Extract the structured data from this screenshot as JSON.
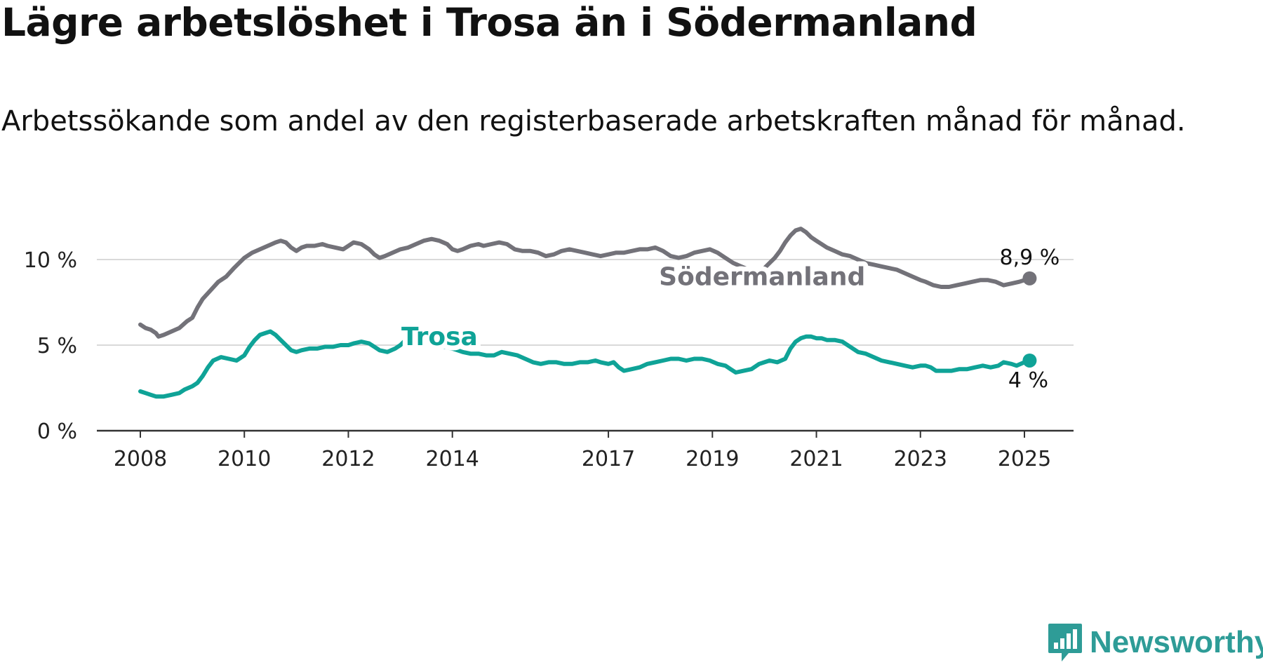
{
  "title": "Lägre arbetslöshet i Trosa än i Södermanland",
  "subtitle": "Arbetssökande som andel av den registerbaserade arbetskraften månad för månad.",
  "brand": "Newsworthy",
  "colors": {
    "sodermanland": "#737279",
    "trosa": "#0fa397",
    "grid": "#d9d9d9",
    "axis": "#333333",
    "brand": "#2e9c97"
  },
  "chart_data": {
    "type": "line",
    "xlim": [
      2007.58,
      2026.0
    ],
    "ylim": [
      0,
      12
    ],
    "y_ticks": [
      {
        "value": 0,
        "label": "0 %"
      },
      {
        "value": 5,
        "label": "5 %"
      },
      {
        "value": 10,
        "label": "10 %"
      }
    ],
    "x_ticks": [
      {
        "value": 2008,
        "label": "2008"
      },
      {
        "value": 2010,
        "label": "2010"
      },
      {
        "value": 2012,
        "label": "2012"
      },
      {
        "value": 2014,
        "label": "2014"
      },
      {
        "value": 2017,
        "label": "2017"
      },
      {
        "value": 2019,
        "label": "2019"
      },
      {
        "value": 2021,
        "label": "2021"
      },
      {
        "value": 2023,
        "label": "2023"
      },
      {
        "value": 2025,
        "label": "2025"
      }
    ],
    "grid": true,
    "series": [
      {
        "name": "Södermanland",
        "color": "#737279",
        "end_label": "8,9 %",
        "label_anchor": [
          2018.0,
          9.0
        ],
        "points": [
          [
            2008.0,
            6.2
          ],
          [
            2008.1,
            6.0
          ],
          [
            2008.2,
            5.9
          ],
          [
            2008.3,
            5.7
          ],
          [
            2008.35,
            5.5
          ],
          [
            2008.45,
            5.6
          ],
          [
            2008.6,
            5.8
          ],
          [
            2008.75,
            6.0
          ],
          [
            2008.9,
            6.4
          ],
          [
            2009.0,
            6.6
          ],
          [
            2009.1,
            7.2
          ],
          [
            2009.2,
            7.7
          ],
          [
            2009.35,
            8.2
          ],
          [
            2009.5,
            8.7
          ],
          [
            2009.65,
            9.0
          ],
          [
            2009.8,
            9.5
          ],
          [
            2009.9,
            9.8
          ],
          [
            2010.0,
            10.1
          ],
          [
            2010.15,
            10.4
          ],
          [
            2010.3,
            10.6
          ],
          [
            2010.45,
            10.8
          ],
          [
            2010.6,
            11.0
          ],
          [
            2010.7,
            11.1
          ],
          [
            2010.8,
            11.0
          ],
          [
            2010.9,
            10.7
          ],
          [
            2011.0,
            10.5
          ],
          [
            2011.1,
            10.7
          ],
          [
            2011.2,
            10.8
          ],
          [
            2011.35,
            10.8
          ],
          [
            2011.5,
            10.9
          ],
          [
            2011.6,
            10.8
          ],
          [
            2011.75,
            10.7
          ],
          [
            2011.9,
            10.6
          ],
          [
            2012.0,
            10.8
          ],
          [
            2012.1,
            11.0
          ],
          [
            2012.25,
            10.9
          ],
          [
            2012.4,
            10.6
          ],
          [
            2012.5,
            10.3
          ],
          [
            2012.6,
            10.1
          ],
          [
            2012.7,
            10.2
          ],
          [
            2012.85,
            10.4
          ],
          [
            2013.0,
            10.6
          ],
          [
            2013.15,
            10.7
          ],
          [
            2013.3,
            10.9
          ],
          [
            2013.45,
            11.1
          ],
          [
            2013.6,
            11.2
          ],
          [
            2013.75,
            11.1
          ],
          [
            2013.9,
            10.9
          ],
          [
            2014.0,
            10.6
          ],
          [
            2014.1,
            10.5
          ],
          [
            2014.2,
            10.6
          ],
          [
            2014.35,
            10.8
          ],
          [
            2014.5,
            10.9
          ],
          [
            2014.6,
            10.8
          ],
          [
            2014.75,
            10.9
          ],
          [
            2014.9,
            11.0
          ],
          [
            2015.05,
            10.9
          ],
          [
            2015.2,
            10.6
          ],
          [
            2015.35,
            10.5
          ],
          [
            2015.5,
            10.5
          ],
          [
            2015.65,
            10.4
          ],
          [
            2015.8,
            10.2
          ],
          [
            2015.95,
            10.3
          ],
          [
            2016.1,
            10.5
          ],
          [
            2016.25,
            10.6
          ],
          [
            2016.4,
            10.5
          ],
          [
            2016.55,
            10.4
          ],
          [
            2016.7,
            10.3
          ],
          [
            2016.85,
            10.2
          ],
          [
            2017.0,
            10.3
          ],
          [
            2017.15,
            10.4
          ],
          [
            2017.3,
            10.4
          ],
          [
            2017.45,
            10.5
          ],
          [
            2017.6,
            10.6
          ],
          [
            2017.75,
            10.6
          ],
          [
            2017.9,
            10.7
          ],
          [
            2018.05,
            10.5
          ],
          [
            2018.2,
            10.2
          ],
          [
            2018.35,
            10.1
          ],
          [
            2018.5,
            10.2
          ],
          [
            2018.65,
            10.4
          ],
          [
            2018.8,
            10.5
          ],
          [
            2018.95,
            10.6
          ],
          [
            2019.1,
            10.4
          ],
          [
            2019.25,
            10.1
          ],
          [
            2019.4,
            9.8
          ],
          [
            2019.55,
            9.6
          ],
          [
            2019.7,
            9.4
          ],
          [
            2019.85,
            9.3
          ],
          [
            2020.0,
            9.5
          ],
          [
            2020.1,
            9.8
          ],
          [
            2020.2,
            10.1
          ],
          [
            2020.3,
            10.5
          ],
          [
            2020.4,
            11.0
          ],
          [
            2020.5,
            11.4
          ],
          [
            2020.6,
            11.7
          ],
          [
            2020.7,
            11.8
          ],
          [
            2020.8,
            11.6
          ],
          [
            2020.9,
            11.3
          ],
          [
            2021.0,
            11.1
          ],
          [
            2021.1,
            10.9
          ],
          [
            2021.2,
            10.7
          ],
          [
            2021.35,
            10.5
          ],
          [
            2021.5,
            10.3
          ],
          [
            2021.65,
            10.2
          ],
          [
            2021.8,
            10.0
          ],
          [
            2021.95,
            9.8
          ],
          [
            2022.1,
            9.7
          ],
          [
            2022.25,
            9.6
          ],
          [
            2022.4,
            9.5
          ],
          [
            2022.55,
            9.4
          ],
          [
            2022.7,
            9.2
          ],
          [
            2022.85,
            9.0
          ],
          [
            2023.0,
            8.8
          ],
          [
            2023.1,
            8.7
          ],
          [
            2023.25,
            8.5
          ],
          [
            2023.4,
            8.4
          ],
          [
            2023.55,
            8.4
          ],
          [
            2023.7,
            8.5
          ],
          [
            2023.85,
            8.6
          ],
          [
            2024.0,
            8.7
          ],
          [
            2024.15,
            8.8
          ],
          [
            2024.3,
            8.8
          ],
          [
            2024.45,
            8.7
          ],
          [
            2024.6,
            8.5
          ],
          [
            2024.75,
            8.6
          ],
          [
            2024.9,
            8.7
          ],
          [
            2025.0,
            8.8
          ],
          [
            2025.1,
            8.9
          ]
        ]
      },
      {
        "name": "Trosa",
        "color": "#0fa397",
        "end_label": "4 %",
        "label_anchor": [
          2013.1,
          5.5
        ],
        "points": [
          [
            2008.0,
            2.3
          ],
          [
            2008.1,
            2.2
          ],
          [
            2008.2,
            2.1
          ],
          [
            2008.3,
            2.0
          ],
          [
            2008.45,
            2.0
          ],
          [
            2008.6,
            2.1
          ],
          [
            2008.75,
            2.2
          ],
          [
            2008.85,
            2.4
          ],
          [
            2009.0,
            2.6
          ],
          [
            2009.1,
            2.8
          ],
          [
            2009.2,
            3.2
          ],
          [
            2009.3,
            3.7
          ],
          [
            2009.4,
            4.1
          ],
          [
            2009.55,
            4.3
          ],
          [
            2009.7,
            4.2
          ],
          [
            2009.85,
            4.1
          ],
          [
            2010.0,
            4.4
          ],
          [
            2010.1,
            4.9
          ],
          [
            2010.2,
            5.3
          ],
          [
            2010.3,
            5.6
          ],
          [
            2010.4,
            5.7
          ],
          [
            2010.5,
            5.8
          ],
          [
            2010.6,
            5.6
          ],
          [
            2010.7,
            5.3
          ],
          [
            2010.8,
            5.0
          ],
          [
            2010.9,
            4.7
          ],
          [
            2011.0,
            4.6
          ],
          [
            2011.1,
            4.7
          ],
          [
            2011.25,
            4.8
          ],
          [
            2011.4,
            4.8
          ],
          [
            2011.55,
            4.9
          ],
          [
            2011.7,
            4.9
          ],
          [
            2011.85,
            5.0
          ],
          [
            2012.0,
            5.0
          ],
          [
            2012.1,
            5.1
          ],
          [
            2012.25,
            5.2
          ],
          [
            2012.4,
            5.1
          ],
          [
            2012.5,
            4.9
          ],
          [
            2012.6,
            4.7
          ],
          [
            2012.75,
            4.6
          ],
          [
            2012.9,
            4.8
          ],
          [
            2013.0,
            5.0
          ],
          [
            2013.1,
            5.3
          ],
          [
            2013.2,
            5.6
          ],
          [
            2013.35,
            5.6
          ],
          [
            2013.5,
            5.5
          ],
          [
            2013.6,
            5.2
          ],
          [
            2013.7,
            5.0
          ],
          [
            2013.85,
            4.9
          ],
          [
            2014.0,
            4.8
          ],
          [
            2014.1,
            4.7
          ],
          [
            2014.2,
            4.6
          ],
          [
            2014.35,
            4.5
          ],
          [
            2014.5,
            4.5
          ],
          [
            2014.65,
            4.4
          ],
          [
            2014.8,
            4.4
          ],
          [
            2014.95,
            4.6
          ],
          [
            2015.1,
            4.5
          ],
          [
            2015.25,
            4.4
          ],
          [
            2015.4,
            4.2
          ],
          [
            2015.55,
            4.0
          ],
          [
            2015.7,
            3.9
          ],
          [
            2015.85,
            4.0
          ],
          [
            2016.0,
            4.0
          ],
          [
            2016.15,
            3.9
          ],
          [
            2016.3,
            3.9
          ],
          [
            2016.45,
            4.0
          ],
          [
            2016.6,
            4.0
          ],
          [
            2016.75,
            4.1
          ],
          [
            2016.85,
            4.0
          ],
          [
            2017.0,
            3.9
          ],
          [
            2017.1,
            4.0
          ],
          [
            2017.2,
            3.7
          ],
          [
            2017.3,
            3.5
          ],
          [
            2017.45,
            3.6
          ],
          [
            2017.6,
            3.7
          ],
          [
            2017.75,
            3.9
          ],
          [
            2017.9,
            4.0
          ],
          [
            2018.05,
            4.1
          ],
          [
            2018.2,
            4.2
          ],
          [
            2018.35,
            4.2
          ],
          [
            2018.5,
            4.1
          ],
          [
            2018.65,
            4.2
          ],
          [
            2018.8,
            4.2
          ],
          [
            2018.95,
            4.1
          ],
          [
            2019.1,
            3.9
          ],
          [
            2019.25,
            3.8
          ],
          [
            2019.35,
            3.6
          ],
          [
            2019.45,
            3.4
          ],
          [
            2019.6,
            3.5
          ],
          [
            2019.75,
            3.6
          ],
          [
            2019.9,
            3.9
          ],
          [
            2020.0,
            4.0
          ],
          [
            2020.1,
            4.1
          ],
          [
            2020.25,
            4.0
          ],
          [
            2020.4,
            4.2
          ],
          [
            2020.5,
            4.8
          ],
          [
            2020.6,
            5.2
          ],
          [
            2020.7,
            5.4
          ],
          [
            2020.8,
            5.5
          ],
          [
            2020.9,
            5.5
          ],
          [
            2021.0,
            5.4
          ],
          [
            2021.1,
            5.4
          ],
          [
            2021.2,
            5.3
          ],
          [
            2021.35,
            5.3
          ],
          [
            2021.5,
            5.2
          ],
          [
            2021.6,
            5.0
          ],
          [
            2021.7,
            4.8
          ],
          [
            2021.8,
            4.6
          ],
          [
            2021.95,
            4.5
          ],
          [
            2022.1,
            4.3
          ],
          [
            2022.25,
            4.1
          ],
          [
            2022.4,
            4.0
          ],
          [
            2022.55,
            3.9
          ],
          [
            2022.7,
            3.8
          ],
          [
            2022.85,
            3.7
          ],
          [
            2023.0,
            3.8
          ],
          [
            2023.1,
            3.8
          ],
          [
            2023.2,
            3.7
          ],
          [
            2023.3,
            3.5
          ],
          [
            2023.45,
            3.5
          ],
          [
            2023.6,
            3.5
          ],
          [
            2023.75,
            3.6
          ],
          [
            2023.9,
            3.6
          ],
          [
            2024.05,
            3.7
          ],
          [
            2024.2,
            3.8
          ],
          [
            2024.35,
            3.7
          ],
          [
            2024.5,
            3.8
          ],
          [
            2024.6,
            4.0
          ],
          [
            2024.75,
            3.9
          ],
          [
            2024.85,
            3.8
          ],
          [
            2025.0,
            4.0
          ],
          [
            2025.1,
            4.1
          ]
        ]
      }
    ]
  }
}
